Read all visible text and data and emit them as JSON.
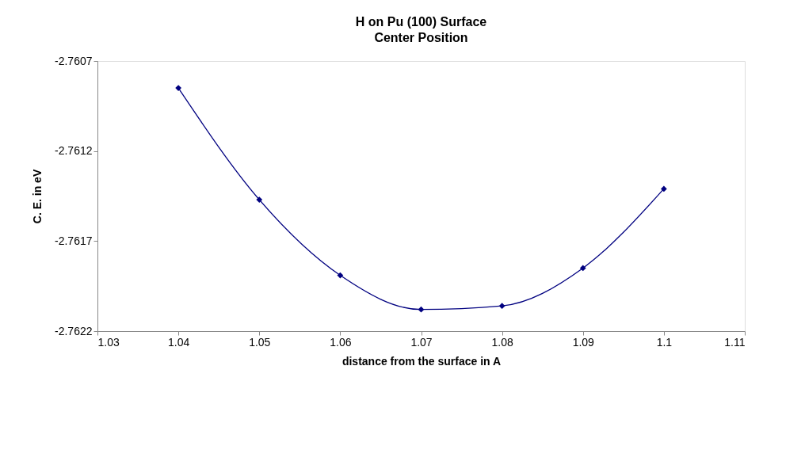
{
  "chart_data": {
    "type": "line",
    "title": "H on Pu (100) Surface",
    "subtitle": "Center Position",
    "xlabel": "distance from the surface in A",
    "ylabel": "C. E. in eV",
    "x": [
      1.04,
      1.05,
      1.06,
      1.07,
      1.08,
      1.09,
      1.1
    ],
    "series": [
      {
        "color": "#000080",
        "values": [
          -2.76085,
          -2.76147,
          -2.76189,
          -2.76208,
          -2.76206,
          -2.76185,
          -2.76141
        ]
      }
    ],
    "xlim": [
      1.03,
      1.11
    ],
    "xticks": [
      1.03,
      1.04,
      1.05,
      1.06,
      1.07,
      1.08,
      1.09,
      {
        "value": 1.1,
        "label": "1.1"
      },
      1.11
    ],
    "ylim": [
      -2.7622,
      -2.7607
    ],
    "yticks": [
      -2.7622,
      -2.7617,
      -2.7612,
      -2.7607
    ],
    "marker": "diamond",
    "line_style": "solid",
    "grid": false
  }
}
